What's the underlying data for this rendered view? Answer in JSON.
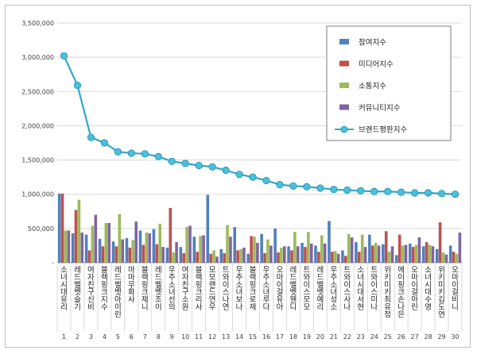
{
  "chart_data": {
    "type": "bar",
    "title": "",
    "xlabel": "",
    "ylabel": "",
    "ylim": [
      0,
      3500000
    ],
    "yticks": [
      0,
      500000,
      1000000,
      1500000,
      2000000,
      2500000,
      3000000,
      3500000
    ],
    "ytick_labels": [
      "-",
      "500,000",
      "1,000,000",
      "1,500,000",
      "2,000,000",
      "2,500,000",
      "3,000,000",
      "3,500,000"
    ],
    "grid": true,
    "legend_position": "top-right",
    "x": [
      1,
      2,
      3,
      4,
      5,
      6,
      7,
      8,
      9,
      10,
      11,
      12,
      13,
      14,
      15,
      16,
      17,
      18,
      19,
      20,
      21,
      22,
      23,
      24,
      25,
      26,
      27,
      28,
      29,
      30
    ],
    "categories": [
      "소녀시대 유리",
      "레드벨벳 슬기",
      "여자친구 신비",
      "블랙핑크 지수",
      "레드벨벳 아이린",
      "마마무 화사",
      "블랙핑크 제니",
      "레드벨벳 조이",
      "우주소녀 선의",
      "여자친구 소원",
      "블랙핑크 리사",
      "모모랜드 연우",
      "트와이스 나연",
      "우주소녀 보나",
      "블랙핑크 로제",
      "우주소녀 루다",
      "오마이걸 유아",
      "레드벨벳 웬디",
      "트와이스 모모",
      "레드벨벳 예리",
      "우주소녀 성소",
      "트와이스 사나",
      "소녀시대 서현",
      "트와이스 미나",
      "위키미키 최유정",
      "에이핑크 손나은",
      "오마이걸 아린",
      "소녀시대 수영",
      "위키미키 김도연",
      "오마이걸 비니"
    ],
    "series": [
      {
        "name": "참여지수",
        "type": "bar",
        "color": "#4f81bd",
        "values": [
          1010000,
          430000,
          410000,
          350000,
          310000,
          360000,
          470000,
          490000,
          220000,
          230000,
          380000,
          990000,
          200000,
          520000,
          130000,
          420000,
          500000,
          240000,
          290000,
          250000,
          610000,
          180000,
          300000,
          410000,
          270000,
          110000,
          280000,
          240000,
          200000,
          250000
        ]
      },
      {
        "name": "미디어지수",
        "type": "bar",
        "color": "#c0504d",
        "values": [
          1010000,
          770000,
          180000,
          240000,
          240000,
          220000,
          260000,
          270000,
          800000,
          140000,
          160000,
          130000,
          140000,
          180000,
          390000,
          140000,
          150000,
          180000,
          230000,
          160000,
          160000,
          100000,
          160000,
          250000,
          460000,
          410000,
          230000,
          300000,
          590000,
          160000
        ]
      },
      {
        "name": "소통지수",
        "type": "bar",
        "color": "#9bbb59",
        "values": [
          470000,
          920000,
          540000,
          580000,
          710000,
          330000,
          440000,
          570000,
          150000,
          520000,
          390000,
          180000,
          550000,
          200000,
          380000,
          340000,
          220000,
          450000,
          450000,
          400000,
          170000,
          420000,
          410000,
          290000,
          160000,
          250000,
          260000,
          260000,
          150000,
          130000
        ]
      },
      {
        "name": "커뮤니티지수",
        "type": "bar",
        "color": "#8064a2",
        "values": [
          470000,
          440000,
          700000,
          580000,
          340000,
          600000,
          430000,
          230000,
          300000,
          540000,
          400000,
          90000,
          380000,
          220000,
          290000,
          250000,
          240000,
          240000,
          280000,
          280000,
          130000,
          370000,
          230000,
          250000,
          240000,
          260000,
          370000,
          240000,
          120000,
          440000
        ]
      },
      {
        "name": "브랜드평판지수",
        "type": "line",
        "color": "#31a7c7",
        "values": [
          3020000,
          2590000,
          1830000,
          1750000,
          1620000,
          1600000,
          1590000,
          1550000,
          1480000,
          1450000,
          1420000,
          1400000,
          1350000,
          1290000,
          1250000,
          1200000,
          1140000,
          1120000,
          1110000,
          1090000,
          1070000,
          1060000,
          1050000,
          1040000,
          1040000,
          1030000,
          1020000,
          1020000,
          1010000,
          1000000
        ]
      }
    ]
  }
}
